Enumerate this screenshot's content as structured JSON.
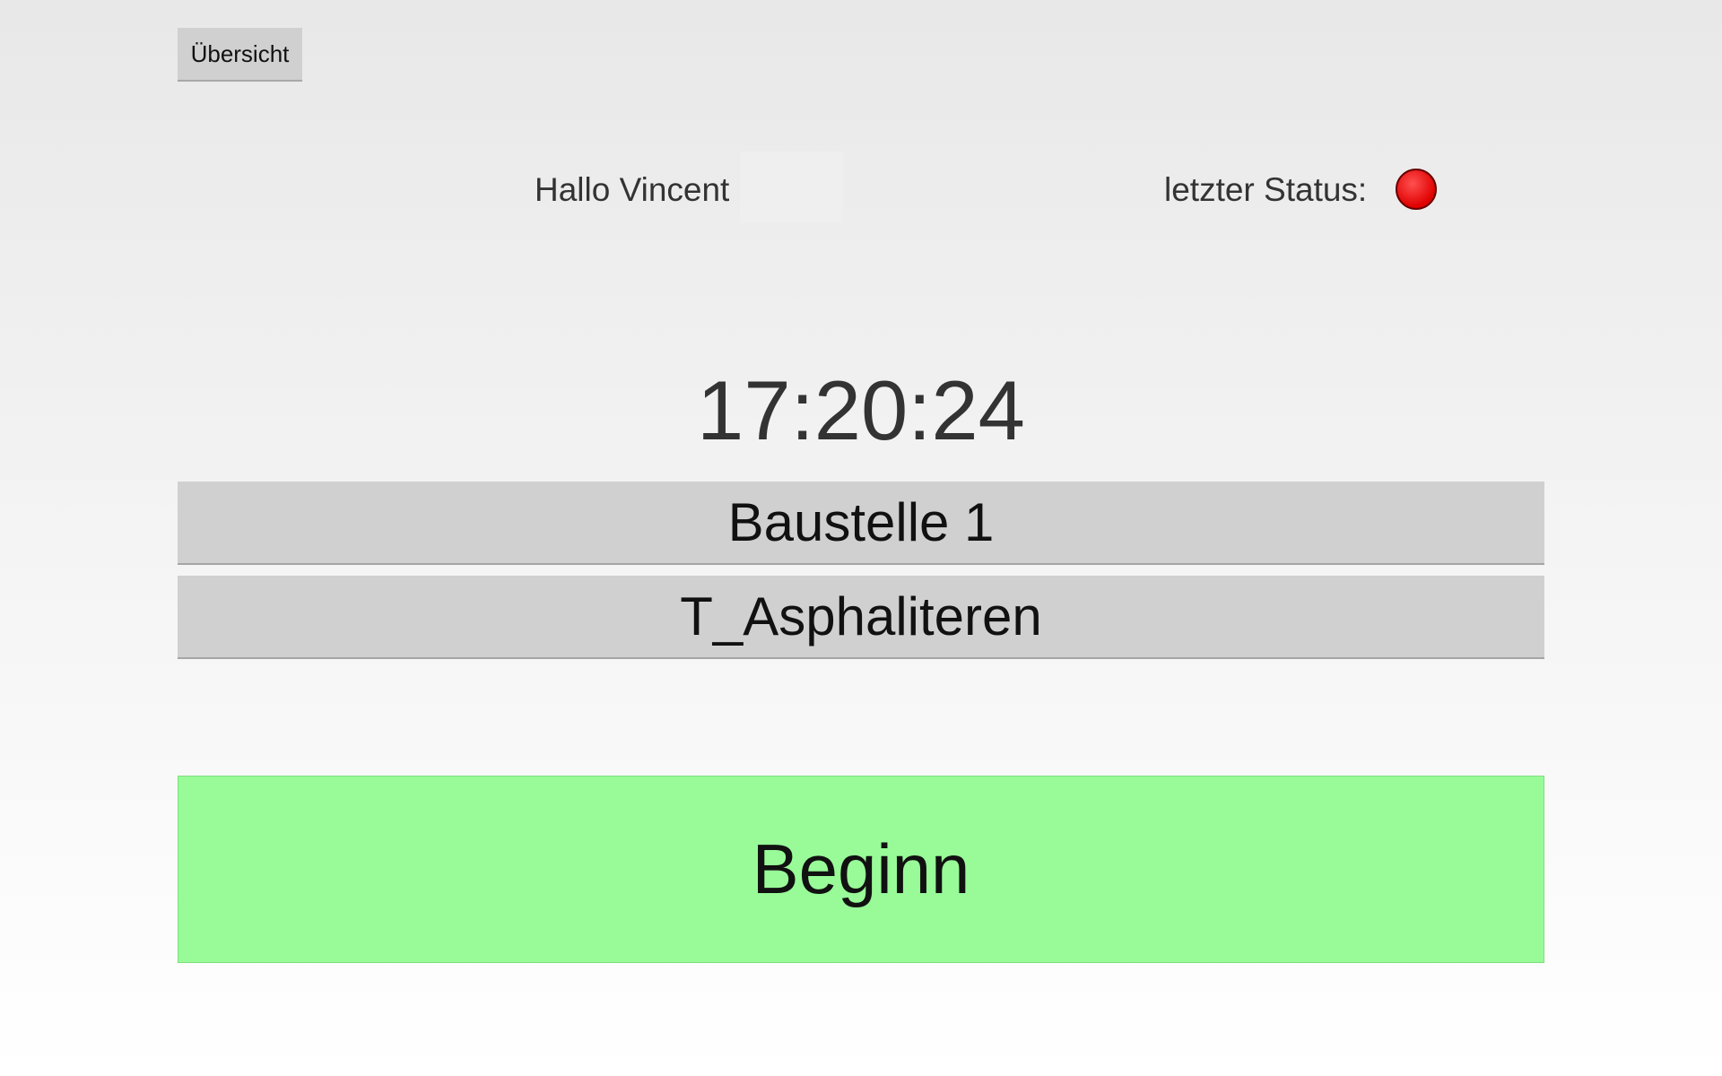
{
  "header": {
    "overview_button": "Übersicht",
    "greeting": "Hallo Vincent",
    "status_label": "letzter Status:",
    "status_color": "#ff0000"
  },
  "main": {
    "clock": "17:20:24",
    "site": "Baustelle 1",
    "task": "T_Asphaliteren",
    "begin_button": "Beginn",
    "begin_color": "#98fb98"
  }
}
